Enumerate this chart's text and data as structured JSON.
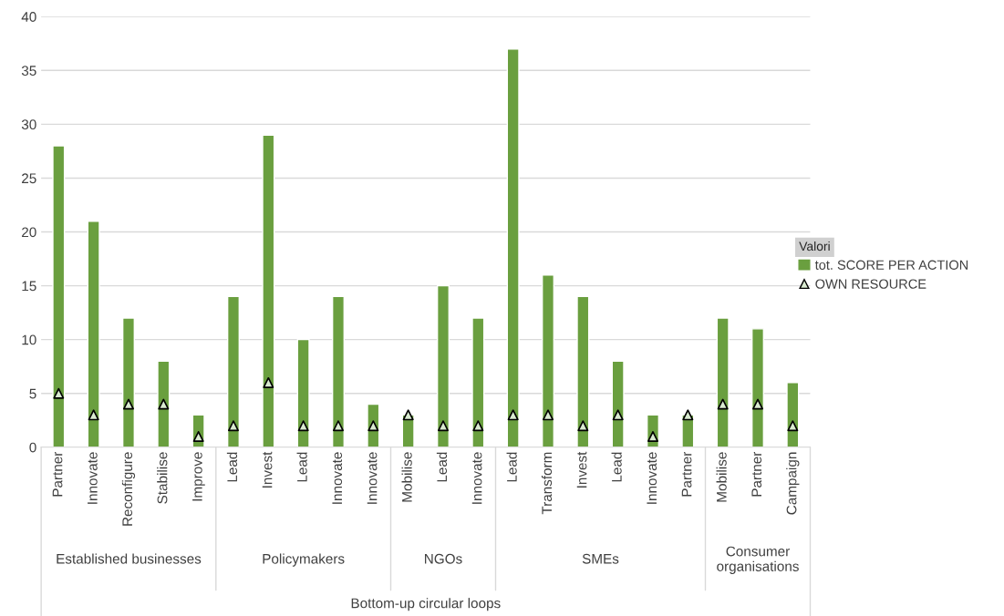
{
  "chart_data": {
    "type": "bar",
    "categories": [
      "Partner",
      "Innovate",
      "Reconfigure",
      "Stabilise",
      "Improve",
      "Lead",
      "Invest",
      "Lead",
      "Innovate",
      "Innovate",
      "Mobilise",
      "Lead",
      "Innovate",
      "Lead",
      "Transform",
      "Invest",
      "Lead",
      "Innovate",
      "Partner",
      "Mobilise",
      "Partner",
      "Campaign"
    ],
    "series": [
      {
        "name": "tot. SCORE PER ACTION",
        "color": "#6a9f3f",
        "values": [
          28,
          21,
          12,
          8,
          3,
          14,
          29,
          10,
          14,
          4,
          3,
          15,
          12,
          37,
          16,
          14,
          8,
          3,
          3,
          12,
          11,
          6
        ]
      },
      {
        "name": "OWN RESOURCE",
        "type": "scatter",
        "color": "#000000",
        "values": [
          5,
          3,
          4,
          4,
          1,
          2,
          6,
          2,
          2,
          2,
          3,
          2,
          2,
          3,
          3,
          2,
          3,
          1,
          3,
          4,
          4,
          2
        ]
      }
    ],
    "annotations": [
      "Established businesses",
      "Policymakers",
      "NGOs",
      "SMEs",
      "Consumer organisations",
      "Bottom-up circular loops"
    ],
    "legend_title": "Valori",
    "legend": "right",
    "marker": "triangle",
    "ylim": [
      0,
      40
    ],
    "yticks": [
      0,
      5,
      10,
      15,
      20,
      25,
      30,
      35,
      40
    ],
    "grid": "y"
  }
}
